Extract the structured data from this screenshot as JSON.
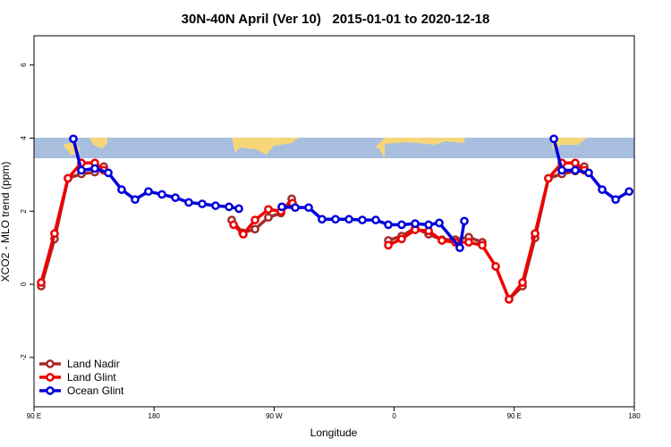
{
  "chart_data": {
    "type": "line",
    "title": "30N-40N April (Ver 10)   2015-01-01 to 2020-12-18",
    "xlabel": "Longitude",
    "ylabel": "XCO2 - MLO trend (ppm)",
    "xlim": [
      90,
      540
    ],
    "ylim": [
      -3.35,
      6.8
    ],
    "xticks": [
      {
        "value": 90,
        "label": "90 E"
      },
      180,
      {
        "value": 270,
        "label": "90 W"
      },
      {
        "value": 360,
        "label": "0"
      },
      {
        "value": 450,
        "label": "90 E"
      },
      {
        "value": 540,
        "label": "180"
      }
    ],
    "yticks": [
      -2,
      0,
      2,
      4,
      6
    ],
    "legend": "bottom-left",
    "series": [
      {
        "name": "Land Nadir",
        "color": "#a52a2a",
        "x": [
          95.4,
          105.4,
          115.5,
          125.5,
          135.6,
          142.3,
          null,
          238.2,
          246.3,
          255.7,
          265.7,
          275.1,
          283.2,
          null,
          355.6,
          365.6,
          375.7,
          385.8,
          395.8,
          405.9,
          415.9,
          426.0,
          null,
          446.1,
          456.2,
          465.6,
          475.6,
          485.7,
          495.7,
          502.5
        ],
        "values": [
          -0.05,
          1.24,
          2.9,
          3.02,
          3.07,
          3.22,
          null,
          1.76,
          1.41,
          1.51,
          1.83,
          1.95,
          2.34,
          null,
          1.2,
          1.32,
          1.54,
          1.37,
          1.22,
          1.22,
          1.29,
          1.15,
          null,
          -0.41,
          -0.05,
          1.27,
          2.9,
          3.02,
          3.1,
          3.22
        ]
      },
      {
        "name": "Land Glint",
        "color": "#ee0000",
        "x": [
          95.4,
          105.4,
          115.5,
          125.5,
          135.6,
          142.3,
          null,
          239.6,
          246.9,
          255.7,
          265.7,
          275.1,
          283.8,
          null,
          355.6,
          365.6,
          375.7,
          385.8,
          395.8,
          405.9,
          415.9,
          426.0,
          436.1,
          446.1,
          456.2,
          465.6,
          475.6,
          485.7,
          495.7,
          502.5
        ],
        "values": [
          0.05,
          1.39,
          2.9,
          3.32,
          3.32,
          3.12,
          null,
          1.63,
          1.37,
          1.76,
          2.05,
          2.0,
          2.22,
          null,
          1.07,
          1.24,
          1.49,
          1.46,
          1.2,
          1.15,
          1.15,
          1.07,
          0.49,
          -0.41,
          0.05,
          1.39,
          2.9,
          3.32,
          3.32,
          3.12
        ]
      },
      {
        "name": "Ocean Glint",
        "color": "#0000dd",
        "x": [
          119.5,
          125.5,
          135.6,
          145.7,
          155.7,
          165.8,
          175.8,
          185.9,
          196.0,
          206.0,
          216.1,
          226.1,
          236.2,
          243.6,
          null,
          275.8,
          285.8,
          295.9,
          305.9,
          316.0,
          326.1,
          336.1,
          346.2,
          355.6,
          365.6,
          375.7,
          385.8,
          393.8,
          409.2,
          412.6,
          null,
          479.7,
          485.7,
          495.7,
          505.8,
          515.9,
          526.0,
          536.1
        ],
        "values": [
          3.98,
          3.12,
          3.17,
          3.05,
          2.59,
          2.32,
          2.54,
          2.46,
          2.37,
          2.24,
          2.2,
          2.15,
          2.12,
          2.07,
          null,
          2.12,
          2.1,
          2.1,
          1.78,
          1.78,
          1.78,
          1.76,
          1.76,
          1.63,
          1.63,
          1.66,
          1.63,
          1.68,
          1.0,
          1.73,
          null,
          3.98,
          3.12,
          3.12,
          3.05,
          2.59,
          2.32,
          2.54
        ]
      }
    ]
  }
}
